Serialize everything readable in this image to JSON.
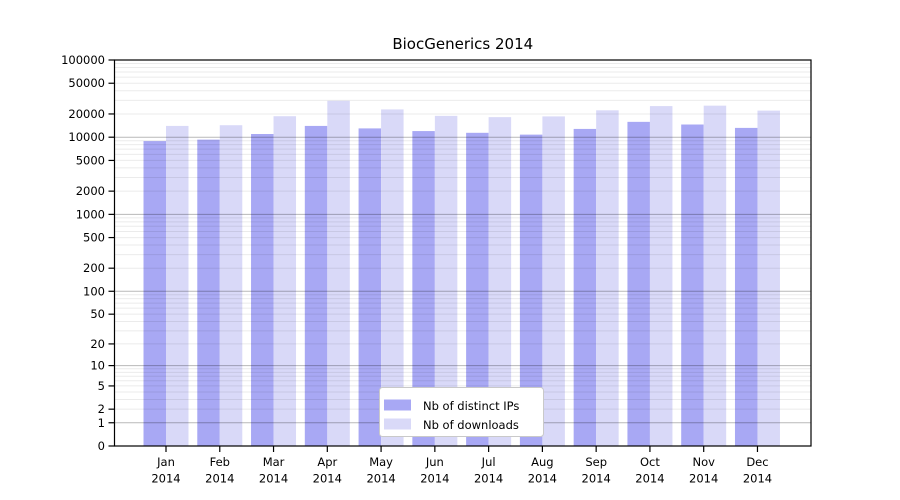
{
  "chart_data": {
    "type": "bar",
    "title": "BiocGenerics 2014",
    "categories": [
      "Jan",
      "Feb",
      "Mar",
      "Apr",
      "May",
      "Jun",
      "Jul",
      "Aug",
      "Sep",
      "Oct",
      "Nov",
      "Dec"
    ],
    "year_label": "2014",
    "series": [
      {
        "name": "Nb of distinct IPs",
        "color": "#a8a8f4",
        "values": [
          8900,
          9300,
          11000,
          14000,
          13000,
          12000,
          11400,
          10800,
          12800,
          15800,
          14600,
          13200
        ]
      },
      {
        "name": "Nb of downloads",
        "color": "#d9d9f8",
        "values": [
          14000,
          14300,
          18700,
          29600,
          22900,
          18900,
          18200,
          18600,
          22300,
          25300,
          25600,
          22100
        ]
      }
    ],
    "y_axis": {
      "scale": "log1p",
      "tick_values": [
        0,
        1,
        2,
        5,
        10,
        20,
        50,
        100,
        200,
        500,
        1000,
        2000,
        5000,
        10000,
        20000,
        50000,
        100000
      ],
      "range": [
        0,
        100000
      ]
    },
    "grid": {
      "minor_color": "rgba(0,0,0,0.08)",
      "major_color": "rgba(0,0,0,0.28)",
      "major_at": [
        1,
        10,
        100,
        1000,
        10000
      ]
    },
    "legend": {
      "position": "bottom-center",
      "entries": [
        "Nb of distinct IPs",
        "Nb of downloads"
      ]
    },
    "frame_color": "#000000"
  }
}
